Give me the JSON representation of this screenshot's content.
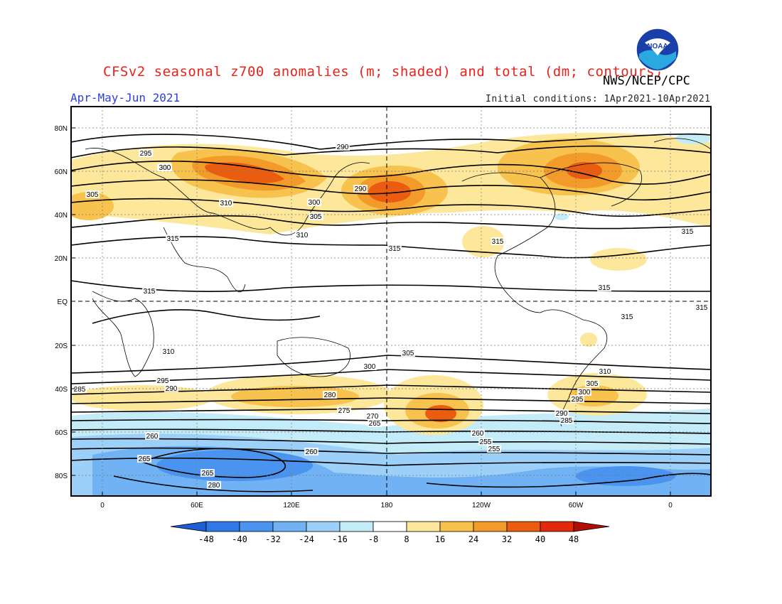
{
  "header": {
    "title": "CFSv2 seasonal z700 anomalies (m; shaded) and total (dm; contours)",
    "agency": "NWS/NCEP/CPC",
    "season": "Apr-May-Jun 2021",
    "initial_conditions": "Initial conditions: 1Apr2021-10Apr2021",
    "logo_text": "NOAA"
  },
  "axes": {
    "lat_labels": [
      "80N",
      "60N",
      "40N",
      "20N",
      "EQ",
      "20S",
      "40S",
      "60S",
      "80S"
    ],
    "lon_labels": [
      "0",
      "60E",
      "120E",
      "180",
      "120W",
      "60W",
      "0"
    ]
  },
  "colorbar": {
    "levels": [
      "-48",
      "-40",
      "-32",
      "-24",
      "-16",
      "-8",
      "8",
      "16",
      "24",
      "32",
      "40",
      "48"
    ],
    "colors": [
      "#1f5fd6",
      "#2f78e6",
      "#4a93ee",
      "#70b2f4",
      "#9cd0f8",
      "#c4ecf8",
      "#ffffff",
      "#fde79a",
      "#f8c24e",
      "#f29a2a",
      "#ea5c10",
      "#e02a0a",
      "#b10f05"
    ]
  },
  "contours": {
    "labels": [
      "290",
      "295",
      "300",
      "305",
      "310",
      "315",
      "315",
      "315",
      "315",
      "315",
      "315",
      "310",
      "305",
      "300",
      "295",
      "290",
      "285",
      "280",
      "275",
      "270",
      "265",
      "260",
      "255",
      "255",
      "260",
      "260",
      "265",
      "265",
      "280",
      "285",
      "290",
      "295",
      "300",
      "305",
      "310",
      "315",
      "300",
      "295",
      "290",
      "295",
      "300",
      "305",
      "310",
      "315"
    ]
  }
}
